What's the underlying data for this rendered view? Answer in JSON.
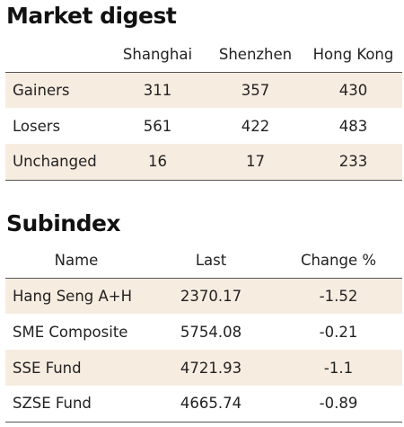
{
  "market_digest": {
    "title": "Market digest",
    "columns": [
      "Shanghai",
      "Shenzhen",
      "Hong Kong"
    ],
    "rows": [
      {
        "label": "Gainers",
        "values": [
          "311",
          "357",
          "430"
        ]
      },
      {
        "label": "Losers",
        "values": [
          "561",
          "422",
          "483"
        ]
      },
      {
        "label": "Unchanged",
        "values": [
          "16",
          "17",
          "233"
        ]
      }
    ]
  },
  "subindex": {
    "title": "Subindex",
    "columns": [
      "Name",
      "Last",
      "Change %"
    ],
    "rows": [
      {
        "name": "Hang Seng A+H",
        "last": "2370.17",
        "change": "-1.52"
      },
      {
        "name": "SME Composite",
        "last": "5754.08",
        "change": "-0.21"
      },
      {
        "name": "SSE Fund",
        "last": "4721.93",
        "change": "-1.1"
      },
      {
        "name": "SZSE Fund",
        "last": "4665.74",
        "change": "-0.89"
      }
    ]
  },
  "colors": {
    "row_shade": "#f7ece0",
    "rule": "#555555"
  }
}
